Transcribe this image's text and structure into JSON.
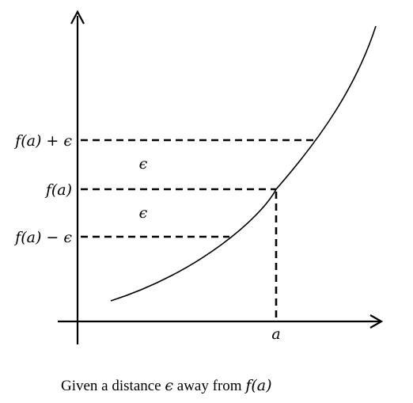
{
  "labels": {
    "y_upper": "f(a) + ϵ",
    "y_mid": "f(a)",
    "y_lower": "f(a) − ϵ",
    "x_point": "a",
    "band_upper": "ϵ",
    "band_lower": "ϵ"
  },
  "caption": {
    "prefix": "Given a distance ",
    "epsilon": "ϵ",
    "middle": " away from ",
    "func": "f(a)"
  }
}
